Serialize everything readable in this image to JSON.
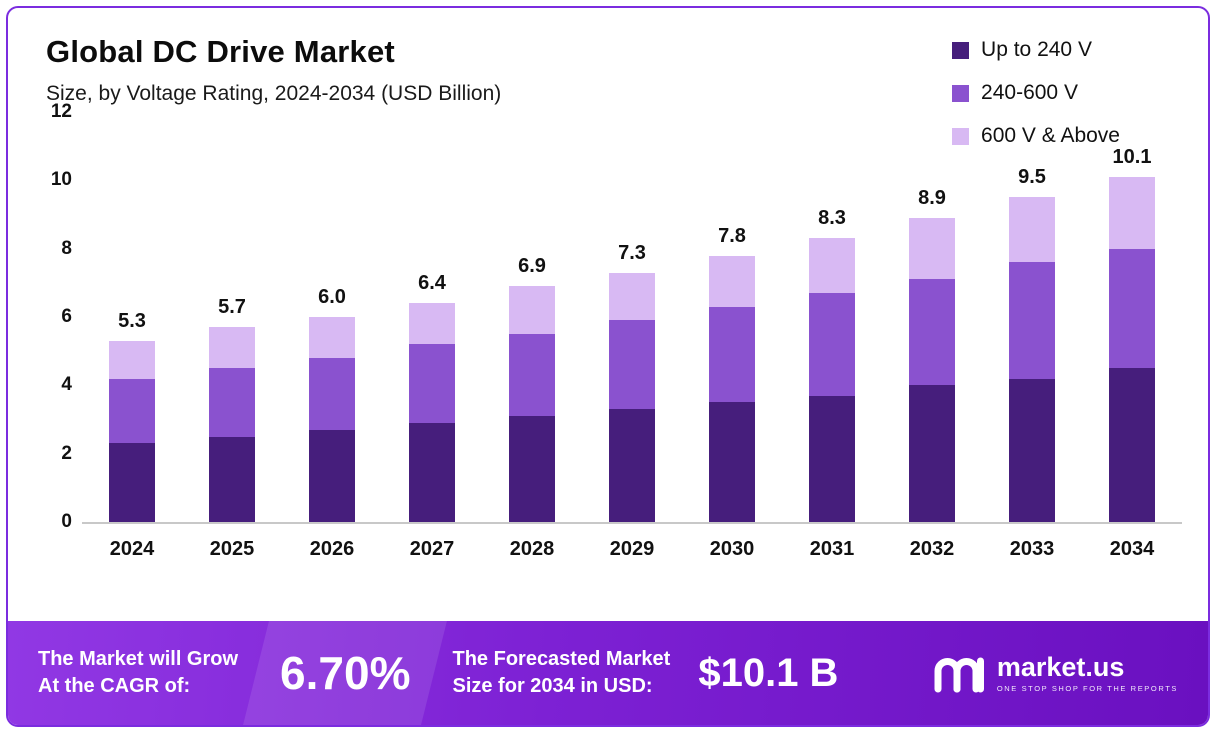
{
  "header": {
    "title": "Global DC Drive Market",
    "subtitle": "Size, by Voltage Rating, 2024-2034 (USD Billion)"
  },
  "chart_data": {
    "type": "bar",
    "stacked": true,
    "title": "Global DC Drive Market",
    "subtitle": "Size, by Voltage Rating, 2024-2034 (USD Billion)",
    "unit": "USD Billion",
    "categories": [
      "2024",
      "2025",
      "2026",
      "2027",
      "2028",
      "2029",
      "2030",
      "2031",
      "2032",
      "2033",
      "2034"
    ],
    "series": [
      {
        "name": "Up to 240 V",
        "color": "#461e7c",
        "values": [
          2.3,
          2.5,
          2.7,
          2.9,
          3.1,
          3.3,
          3.5,
          3.7,
          4.0,
          4.2,
          4.5
        ]
      },
      {
        "name": "240-600 V",
        "color": "#8a52cf",
        "values": [
          1.9,
          2.0,
          2.1,
          2.3,
          2.4,
          2.6,
          2.8,
          3.0,
          3.1,
          3.4,
          3.5
        ]
      },
      {
        "name": "600 V & Above",
        "color": "#d8b9f3",
        "values": [
          1.1,
          1.2,
          1.2,
          1.2,
          1.4,
          1.4,
          1.5,
          1.6,
          1.8,
          1.9,
          2.1
        ]
      }
    ],
    "totals": [
      5.3,
      5.7,
      6.0,
      6.4,
      6.9,
      7.3,
      7.8,
      8.3,
      8.9,
      9.5,
      10.1
    ],
    "ylim": [
      0,
      12
    ],
    "yticks": [
      0,
      2,
      4,
      6,
      8,
      10,
      12
    ],
    "grid": false,
    "legend_position": "top-right"
  },
  "footer": {
    "cagr_label_line1": "The Market will Grow",
    "cagr_label_line2": "At the CAGR of:",
    "cagr_value": "6.70%",
    "forecast_label_line1": "The Forecasted Market",
    "forecast_label_line2": "Size for 2034 in USD:",
    "forecast_value": "$10.1 B",
    "brand": "market.us",
    "brand_tagline": "ONE STOP SHOP FOR THE REPORTS"
  },
  "colors": {
    "accent_border": "#7b2cdf",
    "footer_gradient_start": "#9138e4",
    "footer_gradient_end": "#6a10c0",
    "axis_line": "#c8c8c8",
    "text": "#111111"
  }
}
